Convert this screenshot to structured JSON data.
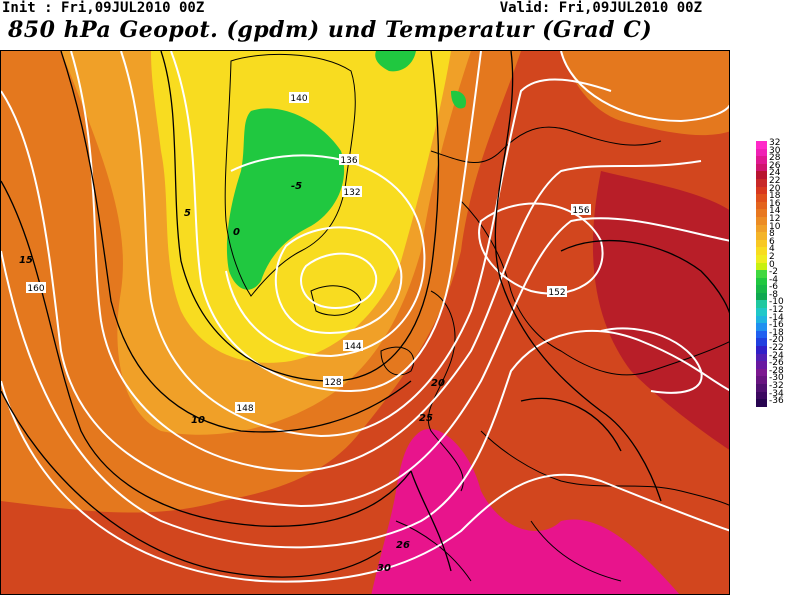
{
  "header": {
    "init": "Init : Fri,09JUL2010 00Z",
    "valid": "Valid: Fri,09JUL2010 00Z",
    "title": "850 hPa Geopot. (gpdm) und Temperatur (Grad C)"
  },
  "map": {
    "geopotential_labels": [
      "128",
      "132",
      "136",
      "140",
      "144",
      "148",
      "152",
      "156",
      "160"
    ],
    "temperature_labels": [
      "-5",
      "0",
      "5",
      "10",
      "15",
      "20",
      "25",
      "26",
      "30"
    ],
    "colors": {
      "very_hot": "#e8148c",
      "hot": "#c8282d",
      "warm": "#e06420",
      "mild": "#f0a028",
      "cool": "#f8e020",
      "cold": "#20c840",
      "land_outline": "#000000",
      "geopotential_contour": "#ffffff",
      "temperature_contour": "#000000"
    }
  },
  "legend": {
    "labels": [
      "32",
      "30",
      "28",
      "26",
      "24",
      "22",
      "20",
      "18",
      "16",
      "14",
      "12",
      "10",
      "8",
      "6",
      "4",
      "2",
      "0",
      "-2",
      "-4",
      "-6",
      "-8",
      "-10",
      "-12",
      "-14",
      "-16",
      "-18",
      "-20",
      "-22",
      "-24",
      "-26",
      "-28",
      "-30",
      "-32",
      "-34",
      "-36"
    ],
    "colors": [
      "#ff28c8",
      "#f020b4",
      "#e01890",
      "#d0146e",
      "#b81430",
      "#c82828",
      "#d8381e",
      "#e0501c",
      "#e4641e",
      "#e87820",
      "#ec8c24",
      "#f0a028",
      "#f4b428",
      "#f8c824",
      "#f8dc20",
      "#f0ec20",
      "#c8f010",
      "#40d840",
      "#20c840",
      "#18b848",
      "#10a850",
      "#20c8a0",
      "#20c8c8",
      "#20b4e0",
      "#2090f0",
      "#2060f0",
      "#2040e0",
      "#3020c8",
      "#5020b4",
      "#6818a0",
      "#7c1890",
      "#681480",
      "#501070",
      "#3c0860",
      "#280450"
    ]
  }
}
